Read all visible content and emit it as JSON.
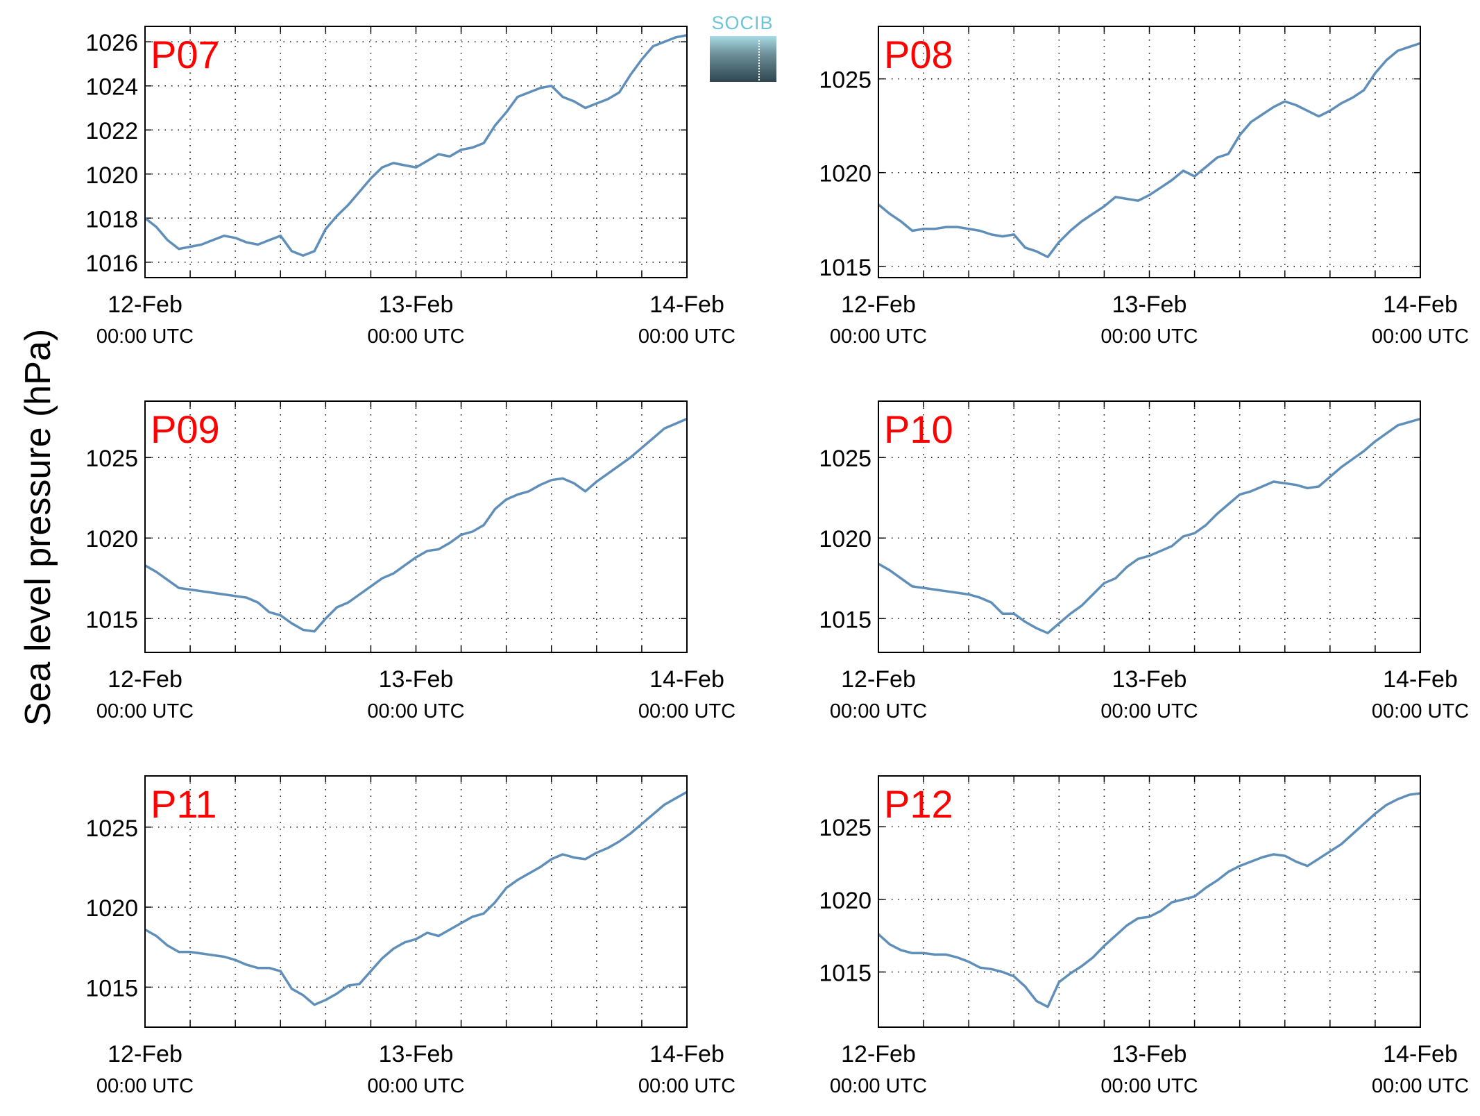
{
  "figure": {
    "ylabel": "Sea level pressure (hPa)",
    "logo_text": "SOCIB"
  },
  "chart_data": [
    {
      "type": "line",
      "title": "P07",
      "xlabel": "",
      "ylabel": "Sea level pressure (hPa)",
      "x_range_hours": [
        0,
        48
      ],
      "x_ticks": [
        {
          "hour": 0,
          "line1": "12-Feb",
          "line2": "00:00 UTC"
        },
        {
          "hour": 24,
          "line1": "13-Feb",
          "line2": "00:00 UTC"
        },
        {
          "hour": 48,
          "line1": "14-Feb",
          "line2": "00:00 UTC"
        }
      ],
      "ylim": [
        1015.3,
        1026.7
      ],
      "yticks": [
        1016,
        1018,
        1020,
        1022,
        1024,
        1026
      ],
      "grid": true,
      "color": "#5f8fb8",
      "series": [
        {
          "x": [
            0,
            1,
            2,
            3,
            4,
            5,
            6,
            7,
            8,
            9,
            10,
            11,
            12,
            13,
            14,
            15,
            16,
            17,
            18,
            19,
            20,
            21,
            22,
            23,
            24,
            25,
            26,
            27,
            28,
            29,
            30,
            31,
            32,
            33,
            34,
            35,
            36,
            37,
            38,
            39,
            40,
            41,
            42,
            43,
            44,
            45,
            46,
            47,
            48
          ],
          "y": [
            1018,
            1017.6,
            1017,
            1016.6,
            1016.7,
            1016.8,
            1017,
            1017.2,
            1017.1,
            1016.9,
            1016.8,
            1017,
            1017.2,
            1016.5,
            1016.3,
            1016.5,
            1017.5,
            1018.1,
            1018.6,
            1019.2,
            1019.8,
            1020.3,
            1020.5,
            1020.4,
            1020.3,
            1020.6,
            1020.9,
            1020.8,
            1021.1,
            1021.2,
            1021.4,
            1022.2,
            1022.8,
            1023.5,
            1023.7,
            1023.9,
            1024,
            1023.5,
            1023.3,
            1023,
            1023.2,
            1023.4,
            1023.7,
            1024.5,
            1025.2,
            1025.8,
            1026,
            1026.2,
            1026.3
          ]
        }
      ]
    },
    {
      "type": "line",
      "title": "P08",
      "xlabel": "",
      "ylabel": "Sea level pressure (hPa)",
      "x_range_hours": [
        0,
        48
      ],
      "x_ticks": [
        {
          "hour": 0,
          "line1": "12-Feb",
          "line2": "00:00 UTC"
        },
        {
          "hour": 24,
          "line1": "13-Feb",
          "line2": "00:00 UTC"
        },
        {
          "hour": 48,
          "line1": "14-Feb",
          "line2": "00:00 UTC"
        }
      ],
      "ylim": [
        1014.4,
        1027.8
      ],
      "yticks": [
        1015,
        1020,
        1025
      ],
      "grid": true,
      "color": "#5f8fb8",
      "series": [
        {
          "x": [
            0,
            1,
            2,
            3,
            4,
            5,
            6,
            7,
            8,
            9,
            10,
            11,
            12,
            13,
            14,
            15,
            16,
            17,
            18,
            19,
            20,
            21,
            22,
            23,
            24,
            25,
            26,
            27,
            28,
            29,
            30,
            31,
            32,
            33,
            34,
            35,
            36,
            37,
            38,
            39,
            40,
            41,
            42,
            43,
            44,
            45,
            46,
            47,
            48
          ],
          "y": [
            1018.3,
            1017.8,
            1017.4,
            1016.9,
            1017,
            1017,
            1017.1,
            1017.1,
            1017,
            1016.9,
            1016.7,
            1016.6,
            1016.7,
            1016,
            1015.8,
            1015.5,
            1016.3,
            1016.9,
            1017.4,
            1017.8,
            1018.2,
            1018.7,
            1018.6,
            1018.5,
            1018.8,
            1019.2,
            1019.6,
            1020.1,
            1019.8,
            1020.3,
            1020.8,
            1021,
            1022,
            1022.7,
            1023.1,
            1023.5,
            1023.8,
            1023.6,
            1023.3,
            1023,
            1023.3,
            1023.7,
            1024,
            1024.4,
            1025.3,
            1026,
            1026.5,
            1026.7,
            1026.9
          ]
        }
      ]
    },
    {
      "type": "line",
      "title": "P09",
      "xlabel": "",
      "ylabel": "Sea level pressure (hPa)",
      "x_range_hours": [
        0,
        48
      ],
      "x_ticks": [
        {
          "hour": 0,
          "line1": "12-Feb",
          "line2": "00:00 UTC"
        },
        {
          "hour": 24,
          "line1": "13-Feb",
          "line2": "00:00 UTC"
        },
        {
          "hour": 48,
          "line1": "14-Feb",
          "line2": "00:00 UTC"
        }
      ],
      "ylim": [
        1012.9,
        1028.5
      ],
      "yticks": [
        1015,
        1020,
        1025
      ],
      "grid": true,
      "color": "#5f8fb8",
      "series": [
        {
          "x": [
            0,
            1,
            2,
            3,
            4,
            5,
            6,
            7,
            8,
            9,
            10,
            11,
            12,
            13,
            14,
            15,
            16,
            17,
            18,
            19,
            20,
            21,
            22,
            23,
            24,
            25,
            26,
            27,
            28,
            29,
            30,
            31,
            32,
            33,
            34,
            35,
            36,
            37,
            38,
            39,
            40,
            41,
            42,
            43,
            44,
            45,
            46,
            47,
            48
          ],
          "y": [
            1018.3,
            1017.9,
            1017.4,
            1016.9,
            1016.8,
            1016.7,
            1016.6,
            1016.5,
            1016.4,
            1016.3,
            1016,
            1015.4,
            1015.2,
            1014.7,
            1014.3,
            1014.2,
            1015,
            1015.7,
            1016,
            1016.5,
            1017,
            1017.5,
            1017.8,
            1018.3,
            1018.8,
            1019.2,
            1019.3,
            1019.7,
            1020.2,
            1020.4,
            1020.8,
            1021.8,
            1022.4,
            1022.7,
            1022.9,
            1023.3,
            1023.6,
            1023.7,
            1023.4,
            1022.9,
            1023.5,
            1024,
            1024.5,
            1025,
            1025.6,
            1026.2,
            1026.8,
            1027.1,
            1027.4
          ]
        }
      ]
    },
    {
      "type": "line",
      "title": "P10",
      "xlabel": "",
      "ylabel": "Sea level pressure (hPa)",
      "x_range_hours": [
        0,
        48
      ],
      "x_ticks": [
        {
          "hour": 0,
          "line1": "12-Feb",
          "line2": "00:00 UTC"
        },
        {
          "hour": 24,
          "line1": "13-Feb",
          "line2": "00:00 UTC"
        },
        {
          "hour": 48,
          "line1": "14-Feb",
          "line2": "00:00 UTC"
        }
      ],
      "ylim": [
        1012.9,
        1028.5
      ],
      "yticks": [
        1015,
        1020,
        1025
      ],
      "grid": true,
      "color": "#5f8fb8",
      "series": [
        {
          "x": [
            0,
            1,
            2,
            3,
            4,
            5,
            6,
            7,
            8,
            9,
            10,
            11,
            12,
            13,
            14,
            15,
            16,
            17,
            18,
            19,
            20,
            21,
            22,
            23,
            24,
            25,
            26,
            27,
            28,
            29,
            30,
            31,
            32,
            33,
            34,
            35,
            36,
            37,
            38,
            39,
            40,
            41,
            42,
            43,
            44,
            45,
            46,
            47,
            48
          ],
          "y": [
            1018.4,
            1018,
            1017.5,
            1017,
            1016.9,
            1016.8,
            1016.7,
            1016.6,
            1016.5,
            1016.3,
            1016,
            1015.3,
            1015.3,
            1014.8,
            1014.4,
            1014.1,
            1014.7,
            1015.3,
            1015.8,
            1016.5,
            1017.2,
            1017.5,
            1018.2,
            1018.7,
            1018.9,
            1019.2,
            1019.5,
            1020.1,
            1020.3,
            1020.8,
            1021.5,
            1022.1,
            1022.7,
            1022.9,
            1023.2,
            1023.5,
            1023.4,
            1023.3,
            1023.1,
            1023.2,
            1023.8,
            1024.4,
            1024.9,
            1025.4,
            1026,
            1026.5,
            1027,
            1027.2,
            1027.4
          ]
        }
      ]
    },
    {
      "type": "line",
      "title": "P11",
      "xlabel": "",
      "ylabel": "Sea level pressure (hPa)",
      "x_range_hours": [
        0,
        48
      ],
      "x_ticks": [
        {
          "hour": 0,
          "line1": "12-Feb",
          "line2": "00:00 UTC"
        },
        {
          "hour": 24,
          "line1": "13-Feb",
          "line2": "00:00 UTC"
        },
        {
          "hour": 48,
          "line1": "14-Feb",
          "line2": "00:00 UTC"
        }
      ],
      "ylim": [
        1012.5,
        1028.2
      ],
      "yticks": [
        1015,
        1020,
        1025
      ],
      "grid": true,
      "color": "#5f8fb8",
      "series": [
        {
          "x": [
            0,
            1,
            2,
            3,
            4,
            5,
            6,
            7,
            8,
            9,
            10,
            11,
            12,
            13,
            14,
            15,
            16,
            17,
            18,
            19,
            20,
            21,
            22,
            23,
            24,
            25,
            26,
            27,
            28,
            29,
            30,
            31,
            32,
            33,
            34,
            35,
            36,
            37,
            38,
            39,
            40,
            41,
            42,
            43,
            44,
            45,
            46,
            47,
            48
          ],
          "y": [
            1018.6,
            1018.2,
            1017.6,
            1017.2,
            1017.2,
            1017.1,
            1017,
            1016.9,
            1016.7,
            1016.4,
            1016.2,
            1016.2,
            1016,
            1014.9,
            1014.5,
            1013.9,
            1014.2,
            1014.6,
            1015.1,
            1015.2,
            1016,
            1016.8,
            1017.4,
            1017.8,
            1018,
            1018.4,
            1018.2,
            1018.6,
            1019,
            1019.4,
            1019.6,
            1020.3,
            1021.2,
            1021.7,
            1022.1,
            1022.5,
            1023,
            1023.3,
            1023.1,
            1023,
            1023.4,
            1023.7,
            1024.1,
            1024.6,
            1025.2,
            1025.8,
            1026.4,
            1026.8,
            1027.2
          ]
        }
      ]
    },
    {
      "type": "line",
      "title": "P12",
      "xlabel": "",
      "ylabel": "Sea level pressure (hPa)",
      "x_range_hours": [
        0,
        48
      ],
      "x_ticks": [
        {
          "hour": 0,
          "line1": "12-Feb",
          "line2": "00:00 UTC"
        },
        {
          "hour": 24,
          "line1": "13-Feb",
          "line2": "00:00 UTC"
        },
        {
          "hour": 48,
          "line1": "14-Feb",
          "line2": "00:00 UTC"
        }
      ],
      "ylim": [
        1011.2,
        1028.5
      ],
      "yticks": [
        1015,
        1020,
        1025
      ],
      "grid": true,
      "color": "#5f8fb8",
      "series": [
        {
          "x": [
            0,
            1,
            2,
            3,
            4,
            5,
            6,
            7,
            8,
            9,
            10,
            11,
            12,
            13,
            14,
            15,
            16,
            17,
            18,
            19,
            20,
            21,
            22,
            23,
            24,
            25,
            26,
            27,
            28,
            29,
            30,
            31,
            32,
            33,
            34,
            35,
            36,
            37,
            38,
            39,
            40,
            41,
            42,
            43,
            44,
            45,
            46,
            47,
            48
          ],
          "y": [
            1017.6,
            1016.9,
            1016.5,
            1016.3,
            1016.3,
            1016.2,
            1016.2,
            1016,
            1015.7,
            1015.3,
            1015.2,
            1015,
            1014.7,
            1014,
            1013,
            1012.6,
            1014.3,
            1014.9,
            1015.4,
            1016,
            1016.8,
            1017.5,
            1018.2,
            1018.7,
            1018.8,
            1019.2,
            1019.8,
            1020,
            1020.2,
            1020.8,
            1021.3,
            1021.9,
            1022.3,
            1022.6,
            1022.9,
            1023.1,
            1023,
            1022.6,
            1022.3,
            1022.8,
            1023.3,
            1023.8,
            1024.5,
            1025.2,
            1025.9,
            1026.5,
            1026.9,
            1027.2,
            1027.3
          ]
        }
      ]
    }
  ]
}
